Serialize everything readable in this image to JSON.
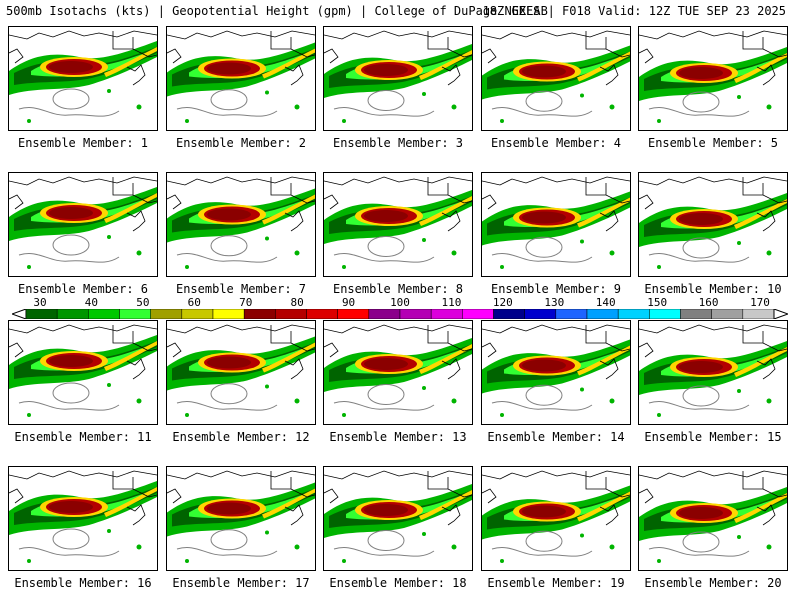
{
  "header": {
    "title_left": "500mb Isotachs (kts) | Geopotential Height (gpm) | College of DuPage NEXLAB",
    "title_right": "18Z GEFS | F018 Valid: 12Z TUE SEP 23 2025"
  },
  "members": [
    "Ensemble Member: 1",
    "Ensemble Member: 2",
    "Ensemble Member: 3",
    "Ensemble Member: 4",
    "Ensemble Member: 5",
    "Ensemble Member: 6",
    "Ensemble Member: 7",
    "Ensemble Member: 8",
    "Ensemble Member: 9",
    "Ensemble Member: 10",
    "Ensemble Member: 11",
    "Ensemble Member: 12",
    "Ensemble Member: 13",
    "Ensemble Member: 14",
    "Ensemble Member: 15",
    "Ensemble Member: 16",
    "Ensemble Member: 17",
    "Ensemble Member: 18",
    "Ensemble Member: 19",
    "Ensemble Member: 20"
  ],
  "colorbar": {
    "ticks": [
      "30",
      "40",
      "50",
      "60",
      "70",
      "80",
      "90",
      "100",
      "110",
      "120",
      "130",
      "140",
      "150",
      "160",
      "170"
    ],
    "colors": [
      "#006400",
      "#009600",
      "#00c800",
      "#32ff32",
      "#a0a000",
      "#c8c800",
      "#ffff00",
      "#8b0000",
      "#b40000",
      "#dc0000",
      "#ff0000",
      "#8b008b",
      "#b400b4",
      "#dc00dc",
      "#ff00ff",
      "#00008b",
      "#0000cd",
      "#1e64ff",
      "#00a0ff",
      "#00d2ff",
      "#00ffff",
      "#808080",
      "#a0a0a0",
      "#c8c8c8"
    ]
  },
  "field_colors": {
    "dark_green": "#006400",
    "green": "#00b400",
    "light_green": "#32ff32",
    "yellow": "#ffd700",
    "red": "#b40000",
    "dark_red": "#8b0000",
    "contour": "#000000",
    "height_contour": "#808080"
  }
}
